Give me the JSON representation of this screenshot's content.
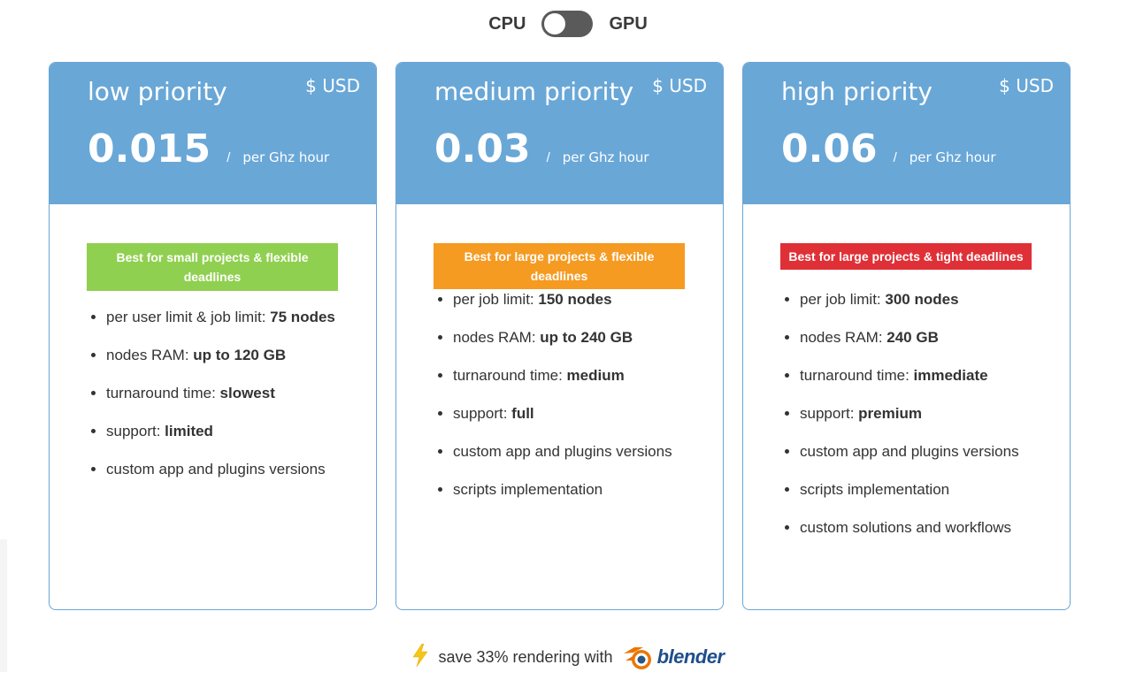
{
  "toggle": {
    "left_label": "CPU",
    "right_label": "GPU"
  },
  "plans": [
    {
      "name": "low priority",
      "currency": "$ USD",
      "price": "0.015",
      "slash": "/",
      "unit": "per Ghz hour",
      "badge": "Best for small projects & flexible deadlines",
      "badge_color": "#90d050",
      "features": [
        {
          "text": "per user limit & job limit: ",
          "bold": "75 nodes"
        },
        {
          "text": "nodes RAM: ",
          "bold": "up to 120 GB"
        },
        {
          "text": "turnaround time: ",
          "bold": "slowest"
        },
        {
          "text": "support: ",
          "bold": "limited"
        },
        {
          "text": "custom app and plugins versions",
          "bold": ""
        }
      ]
    },
    {
      "name": "medium priority",
      "currency": "$ USD",
      "price": "0.03",
      "slash": "/",
      "unit": "per Ghz hour",
      "badge": "Best for large projects & flexible deadlines",
      "badge_color": "#f59b22",
      "features": [
        {
          "text": "per job limit: ",
          "bold": "150 nodes"
        },
        {
          "text": "nodes RAM: ",
          "bold": "up to 240 GB"
        },
        {
          "text": "turnaround time: ",
          "bold": "medium"
        },
        {
          "text": "support: ",
          "bold": "full"
        },
        {
          "text": "custom app and plugins versions",
          "bold": ""
        },
        {
          "text": "scripts implementation",
          "bold": ""
        }
      ]
    },
    {
      "name": "high priority",
      "currency": "$ USD",
      "price": "0.06",
      "slash": "/",
      "unit": "per Ghz hour",
      "badge": "Best for large projects & tight deadlines",
      "badge_color": "#e03037",
      "features": [
        {
          "text": "per job limit: ",
          "bold": "300 nodes"
        },
        {
          "text": "nodes RAM: ",
          "bold": "240 GB"
        },
        {
          "text": "turnaround time: ",
          "bold": "immediate"
        },
        {
          "text": "support: ",
          "bold": "premium"
        },
        {
          "text": "custom app and plugins versions",
          "bold": ""
        },
        {
          "text": "scripts implementation",
          "bold": ""
        },
        {
          "text": "custom solutions and workflows",
          "bold": ""
        }
      ]
    }
  ],
  "footer": {
    "text": "save 33% rendering with",
    "logo_text": "blender",
    "icon": "lightning-bolt-icon"
  }
}
